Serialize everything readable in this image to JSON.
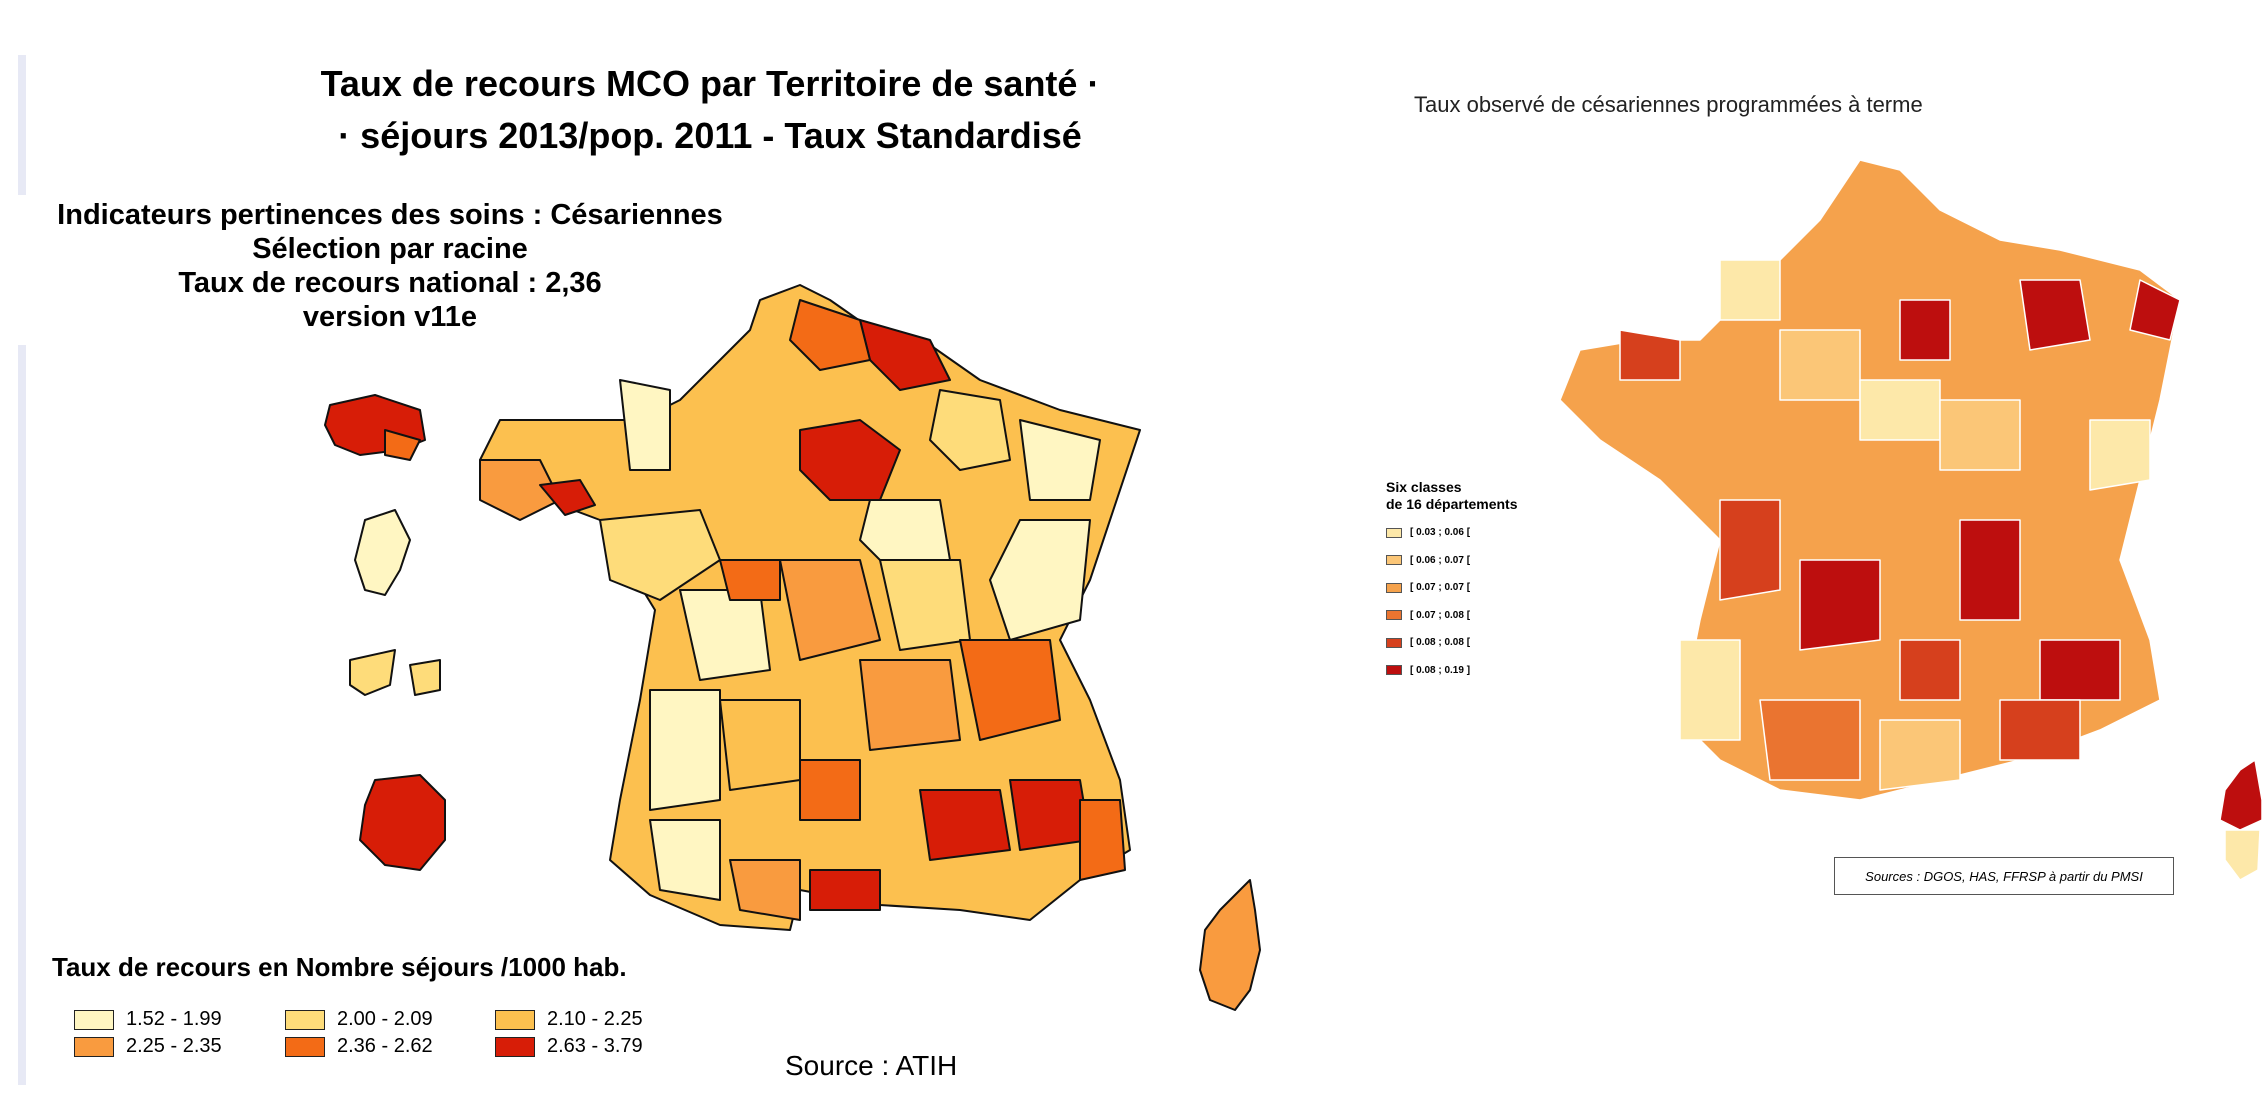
{
  "left_map": {
    "title_line1": "Taux de recours MCO par Territoire de santé ·",
    "title_line2": "· séjours 2013/pop. 2011 - Taux Standardisé",
    "subhead_line1": "Indicateurs pertinences des soins : Césariennes",
    "subhead_line2": "Sélection par racine",
    "subhead_line3": "Taux de recours national : 2,36",
    "subhead_line4": "version v11e",
    "legend_title": "Taux de recours en Nombre séjours /1000 hab.",
    "legend_items": [
      {
        "label": "1.52 - 1.99",
        "color": "#fff6c2"
      },
      {
        "label": "2.00 - 2.09",
        "color": "#fedc7a"
      },
      {
        "label": "2.10 - 2.25",
        "color": "#fcc04f"
      },
      {
        "label": "2.25 - 2.35",
        "color": "#f99b3f"
      },
      {
        "label": "2.36 - 2.62",
        "color": "#f36b16"
      },
      {
        "label": "2.63 - 3.79",
        "color": "#d71d07"
      }
    ],
    "source": "Source : ATIH"
  },
  "right_map": {
    "title": "Taux observé de césariennes programmées à terme",
    "legend_title_line1": "Six classes",
    "legend_title_line2": "de 16 départements",
    "legend_items": [
      {
        "label": "[ 0.03 ; 0.06 [",
        "color": "#fde8a9"
      },
      {
        "label": "[ 0.06 ; 0.07 [",
        "color": "#fbc677"
      },
      {
        "label": "[ 0.07 ; 0.07 [",
        "color": "#f5a24c"
      },
      {
        "label": "[ 0.07 ; 0.08 [",
        "color": "#ea7430"
      },
      {
        "label": "[ 0.08 ; 0.08 [",
        "color": "#d6401d"
      },
      {
        "label": "[ 0.08 ; 0.19 ]",
        "color": "#bd0e0e"
      }
    ],
    "source": "Sources : DGOS, HAS, FFRSP à partir du PMSI"
  }
}
